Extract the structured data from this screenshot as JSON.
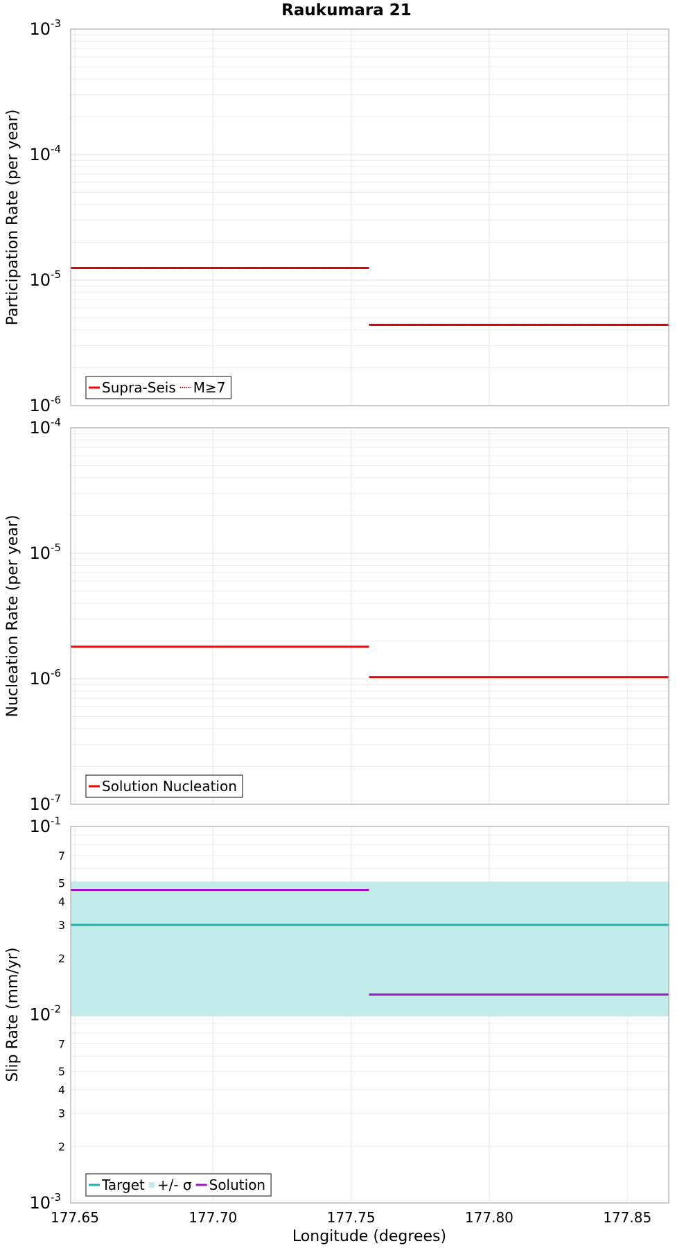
{
  "figure_title": "Raukumara 21",
  "shared_xlabel": "Longitude (degrees)",
  "chart_data": [
    {
      "type": "line",
      "id": "participation",
      "title": "Raukumara 21",
      "xlabel": "",
      "ylabel": "Participation Rate (per year)",
      "yscale": "log",
      "xlim": [
        177.6485,
        177.865
      ],
      "ylim": [
        1e-06,
        0.001
      ],
      "xticks": [
        177.65,
        177.7,
        177.75,
        177.8,
        177.85
      ],
      "xtick_labels": [
        "177.65",
        "177.70",
        "177.75",
        "177.80",
        "177.85"
      ],
      "yticks": [
        {
          "base": "10",
          "exp": "-3",
          "value": 0.001
        },
        {
          "base": "10",
          "exp": "-4",
          "value": 0.0001
        },
        {
          "base": "10",
          "exp": "-5",
          "value": 1e-05
        },
        {
          "base": "10",
          "exp": "-6",
          "value": 1e-06
        }
      ],
      "grid": true,
      "legend_position": "bottom-left",
      "series": [
        {
          "name": "Supra-Seis",
          "color": "#ff0000",
          "style": "solid",
          "segments": [
            {
              "x": [
                177.6485,
                177.7565
              ],
              "y": [
                1.25e-05,
                1.25e-05
              ]
            },
            {
              "x": [
                177.7565,
                177.865
              ],
              "y": [
                4.4e-06,
                4.4e-06
              ]
            }
          ]
        },
        {
          "name": "M≥7",
          "color": "#ff0000",
          "style": "dotted",
          "segments": [
            {
              "x": [
                177.6485,
                177.7565
              ],
              "y": [
                1.25e-05,
                1.25e-05
              ]
            },
            {
              "x": [
                177.7565,
                177.865
              ],
              "y": [
                4.4e-06,
                4.4e-06
              ]
            }
          ]
        }
      ]
    },
    {
      "type": "line",
      "id": "nucleation",
      "title": "",
      "xlabel": "",
      "ylabel": "Nucleation Rate (per year)",
      "yscale": "log",
      "xlim": [
        177.6485,
        177.865
      ],
      "ylim": [
        1e-07,
        0.0001
      ],
      "yticks": [
        {
          "base": "10",
          "exp": "-4",
          "value": 0.0001
        },
        {
          "base": "10",
          "exp": "-5",
          "value": 1e-05
        },
        {
          "base": "10",
          "exp": "-6",
          "value": 1e-06
        },
        {
          "base": "10",
          "exp": "-7",
          "value": 1e-07
        }
      ],
      "grid": true,
      "legend_position": "bottom-left",
      "series": [
        {
          "name": "Solution Nucleation",
          "color": "#ff0000",
          "style": "solid",
          "segments": [
            {
              "x": [
                177.6485,
                177.7565
              ],
              "y": [
                1.8e-06,
                1.8e-06
              ]
            },
            {
              "x": [
                177.7565,
                177.865
              ],
              "y": [
                1.03e-06,
                1.03e-06
              ]
            }
          ]
        }
      ]
    },
    {
      "type": "line",
      "id": "slip",
      "title": "",
      "xlabel": "Longitude (degrees)",
      "ylabel": "Slip Rate (mm/yr)",
      "yscale": "log",
      "xlim": [
        177.6485,
        177.865
      ],
      "ylim": [
        0.001,
        0.1
      ],
      "yticks": [
        {
          "base": "10",
          "exp": "-1",
          "value": 0.1
        },
        {
          "base": "10",
          "exp": "-2",
          "value": 0.01
        },
        {
          "base": "10",
          "exp": "-3",
          "value": 0.001
        }
      ],
      "minor_tick_labels": [
        {
          "label": "7",
          "value": 0.07
        },
        {
          "label": "5",
          "value": 0.05
        },
        {
          "label": "4",
          "value": 0.04
        },
        {
          "label": "3",
          "value": 0.03
        },
        {
          "label": "2",
          "value": 0.02
        },
        {
          "label": "7",
          "value": 0.007
        },
        {
          "label": "5",
          "value": 0.005
        },
        {
          "label": "4",
          "value": 0.004
        },
        {
          "label": "3",
          "value": 0.003
        },
        {
          "label": "2",
          "value": 0.002
        }
      ],
      "grid": true,
      "legend_position": "bottom-left",
      "band": {
        "name": "+/- σ",
        "color": "#c2ecea",
        "x": [
          177.6485,
          177.865
        ],
        "y": [
          0.0098,
          0.051
        ]
      },
      "series": [
        {
          "name": "Target",
          "color": "#20b2aa",
          "style": "solid",
          "segments": [
            {
              "x": [
                177.6485,
                177.865
              ],
              "y": [
                0.03,
                0.03
              ]
            }
          ]
        },
        {
          "name": "Solution",
          "color": "#a010c8",
          "style": "solid",
          "segments": [
            {
              "x": [
                177.6485,
                177.7565
              ],
              "y": [
                0.046,
                0.046
              ]
            },
            {
              "x": [
                177.7565,
                177.865
              ],
              "y": [
                0.0128,
                0.0128
              ]
            }
          ]
        }
      ],
      "legend_order": [
        "Target",
        "+/- σ",
        "Solution"
      ]
    }
  ]
}
